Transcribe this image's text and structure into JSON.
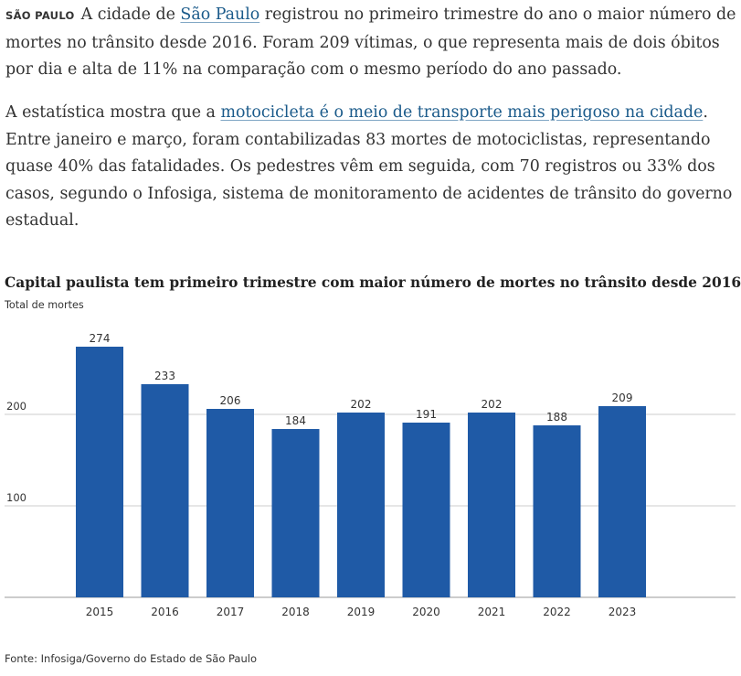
{
  "article": {
    "tag": "SÃO PAULO",
    "p1_a": "A cidade de ",
    "p1_link": "São Paulo",
    "p1_b": " registrou no primeiro trimestre do ano o maior número de mortes no trânsito desde 2016. Foram 209 vítimas, o que representa mais de dois óbitos por dia e alta de 11% na comparação com o mesmo período do ano passado.",
    "p2_a": "A estatística mostra que a ",
    "p2_link": "motocicleta é o meio de transporte mais perigoso na cidade",
    "p2_b": ". Entre janeiro e março, foram contabilizadas 83 mortes de motociclistas, representando quase 40% das fatalidades. Os pedestres vêm em seguida, com 70 registros ou 33% dos casos, segundo o Infosiga, sistema de monitoramento de acidentes de trânsito do governo estadual."
  },
  "colors": {
    "bar": "#1f5aa6",
    "grid": "#cccccc",
    "axis": "#999999",
    "link": "#1a5a8a"
  },
  "chart_data": {
    "type": "bar",
    "title": "Capital paulista tem primeiro trimestre com maior número de mortes no trânsito desde 2016",
    "subtitle": "Total de mortes",
    "xlabel": "",
    "ylabel": "Total de mortes",
    "categories": [
      "2015",
      "2016",
      "2017",
      "2018",
      "2019",
      "2020",
      "2021",
      "2022",
      "2023"
    ],
    "values": [
      274,
      233,
      206,
      184,
      202,
      191,
      202,
      188,
      209
    ],
    "yticks": [
      100,
      200
    ],
    "ylim": [
      0,
      300
    ],
    "grid": true,
    "source": "Fonte: Infosiga/Governo do Estado de São Paulo"
  }
}
